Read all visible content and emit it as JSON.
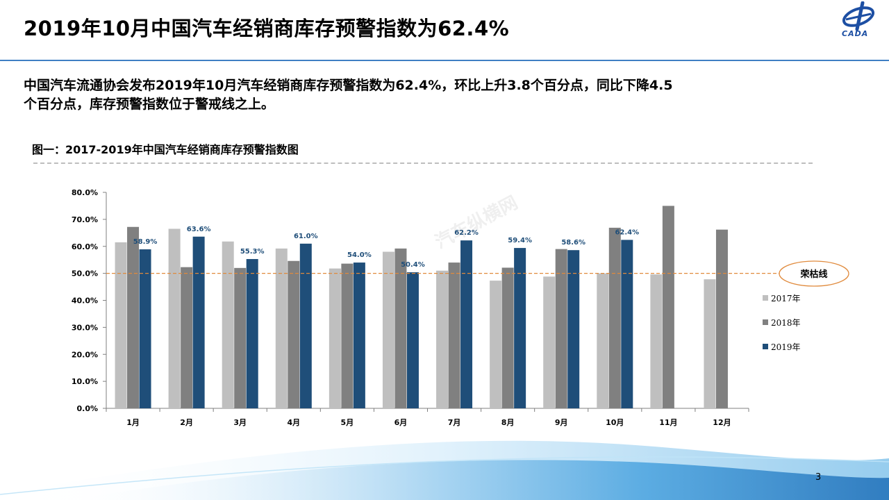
{
  "header": {
    "title": "2019年10月中国汽车经销商库存预警指数为62.4%",
    "logo_text": "CADA"
  },
  "intro": {
    "line1": "中国汽车流通协会发布2019年10月汽车经销商库存预警指数为62.4%，环比上升3.8个百分点，同比下降4.5",
    "line2": "个百分点，库存预警指数位于警戒线之上。"
  },
  "figure": {
    "title": "图一：2017-2019年中国汽车经销商库存预警指数图"
  },
  "watermark": "汽车纵横网",
  "page_number": "3",
  "colors": {
    "s2017": "#bfbfbf",
    "s2018": "#808080",
    "s2019": "#1f4e79",
    "threshold": "#e08a3c",
    "rule": "#3f7fc3"
  },
  "chart_data": {
    "type": "bar",
    "categories": [
      "1月",
      "2月",
      "3月",
      "4月",
      "5月",
      "6月",
      "7月",
      "8月",
      "9月",
      "10月",
      "11月",
      "12月"
    ],
    "series": [
      {
        "name": "2017年",
        "values": [
          61.5,
          66.5,
          61.8,
          59.2,
          51.8,
          58.0,
          51.0,
          47.3,
          48.8,
          50.0,
          49.6,
          47.8
        ]
      },
      {
        "name": "2018年",
        "values": [
          67.2,
          52.3,
          52.0,
          54.6,
          53.6,
          59.2,
          54.0,
          52.1,
          59.0,
          66.9,
          75.0,
          66.2
        ]
      },
      {
        "name": "2019年",
        "values": [
          58.9,
          63.6,
          55.3,
          61.0,
          54.0,
          50.4,
          62.2,
          59.4,
          58.6,
          62.4,
          null,
          null
        ]
      }
    ],
    "data_labels_2019": [
      "58.9%",
      "63.6%",
      "55.3%",
      "61.0%",
      "54.0%",
      "50.4%",
      "62.2%",
      "59.4%",
      "58.6%",
      "62.4%"
    ],
    "yticks": [
      "0.0%",
      "10.0%",
      "20.0%",
      "30.0%",
      "40.0%",
      "50.0%",
      "60.0%",
      "70.0%",
      "80.0%"
    ],
    "ylim": [
      0,
      80
    ],
    "threshold": {
      "value": 50,
      "label": "荣枯线"
    },
    "legend_position": "right",
    "grid": false
  }
}
